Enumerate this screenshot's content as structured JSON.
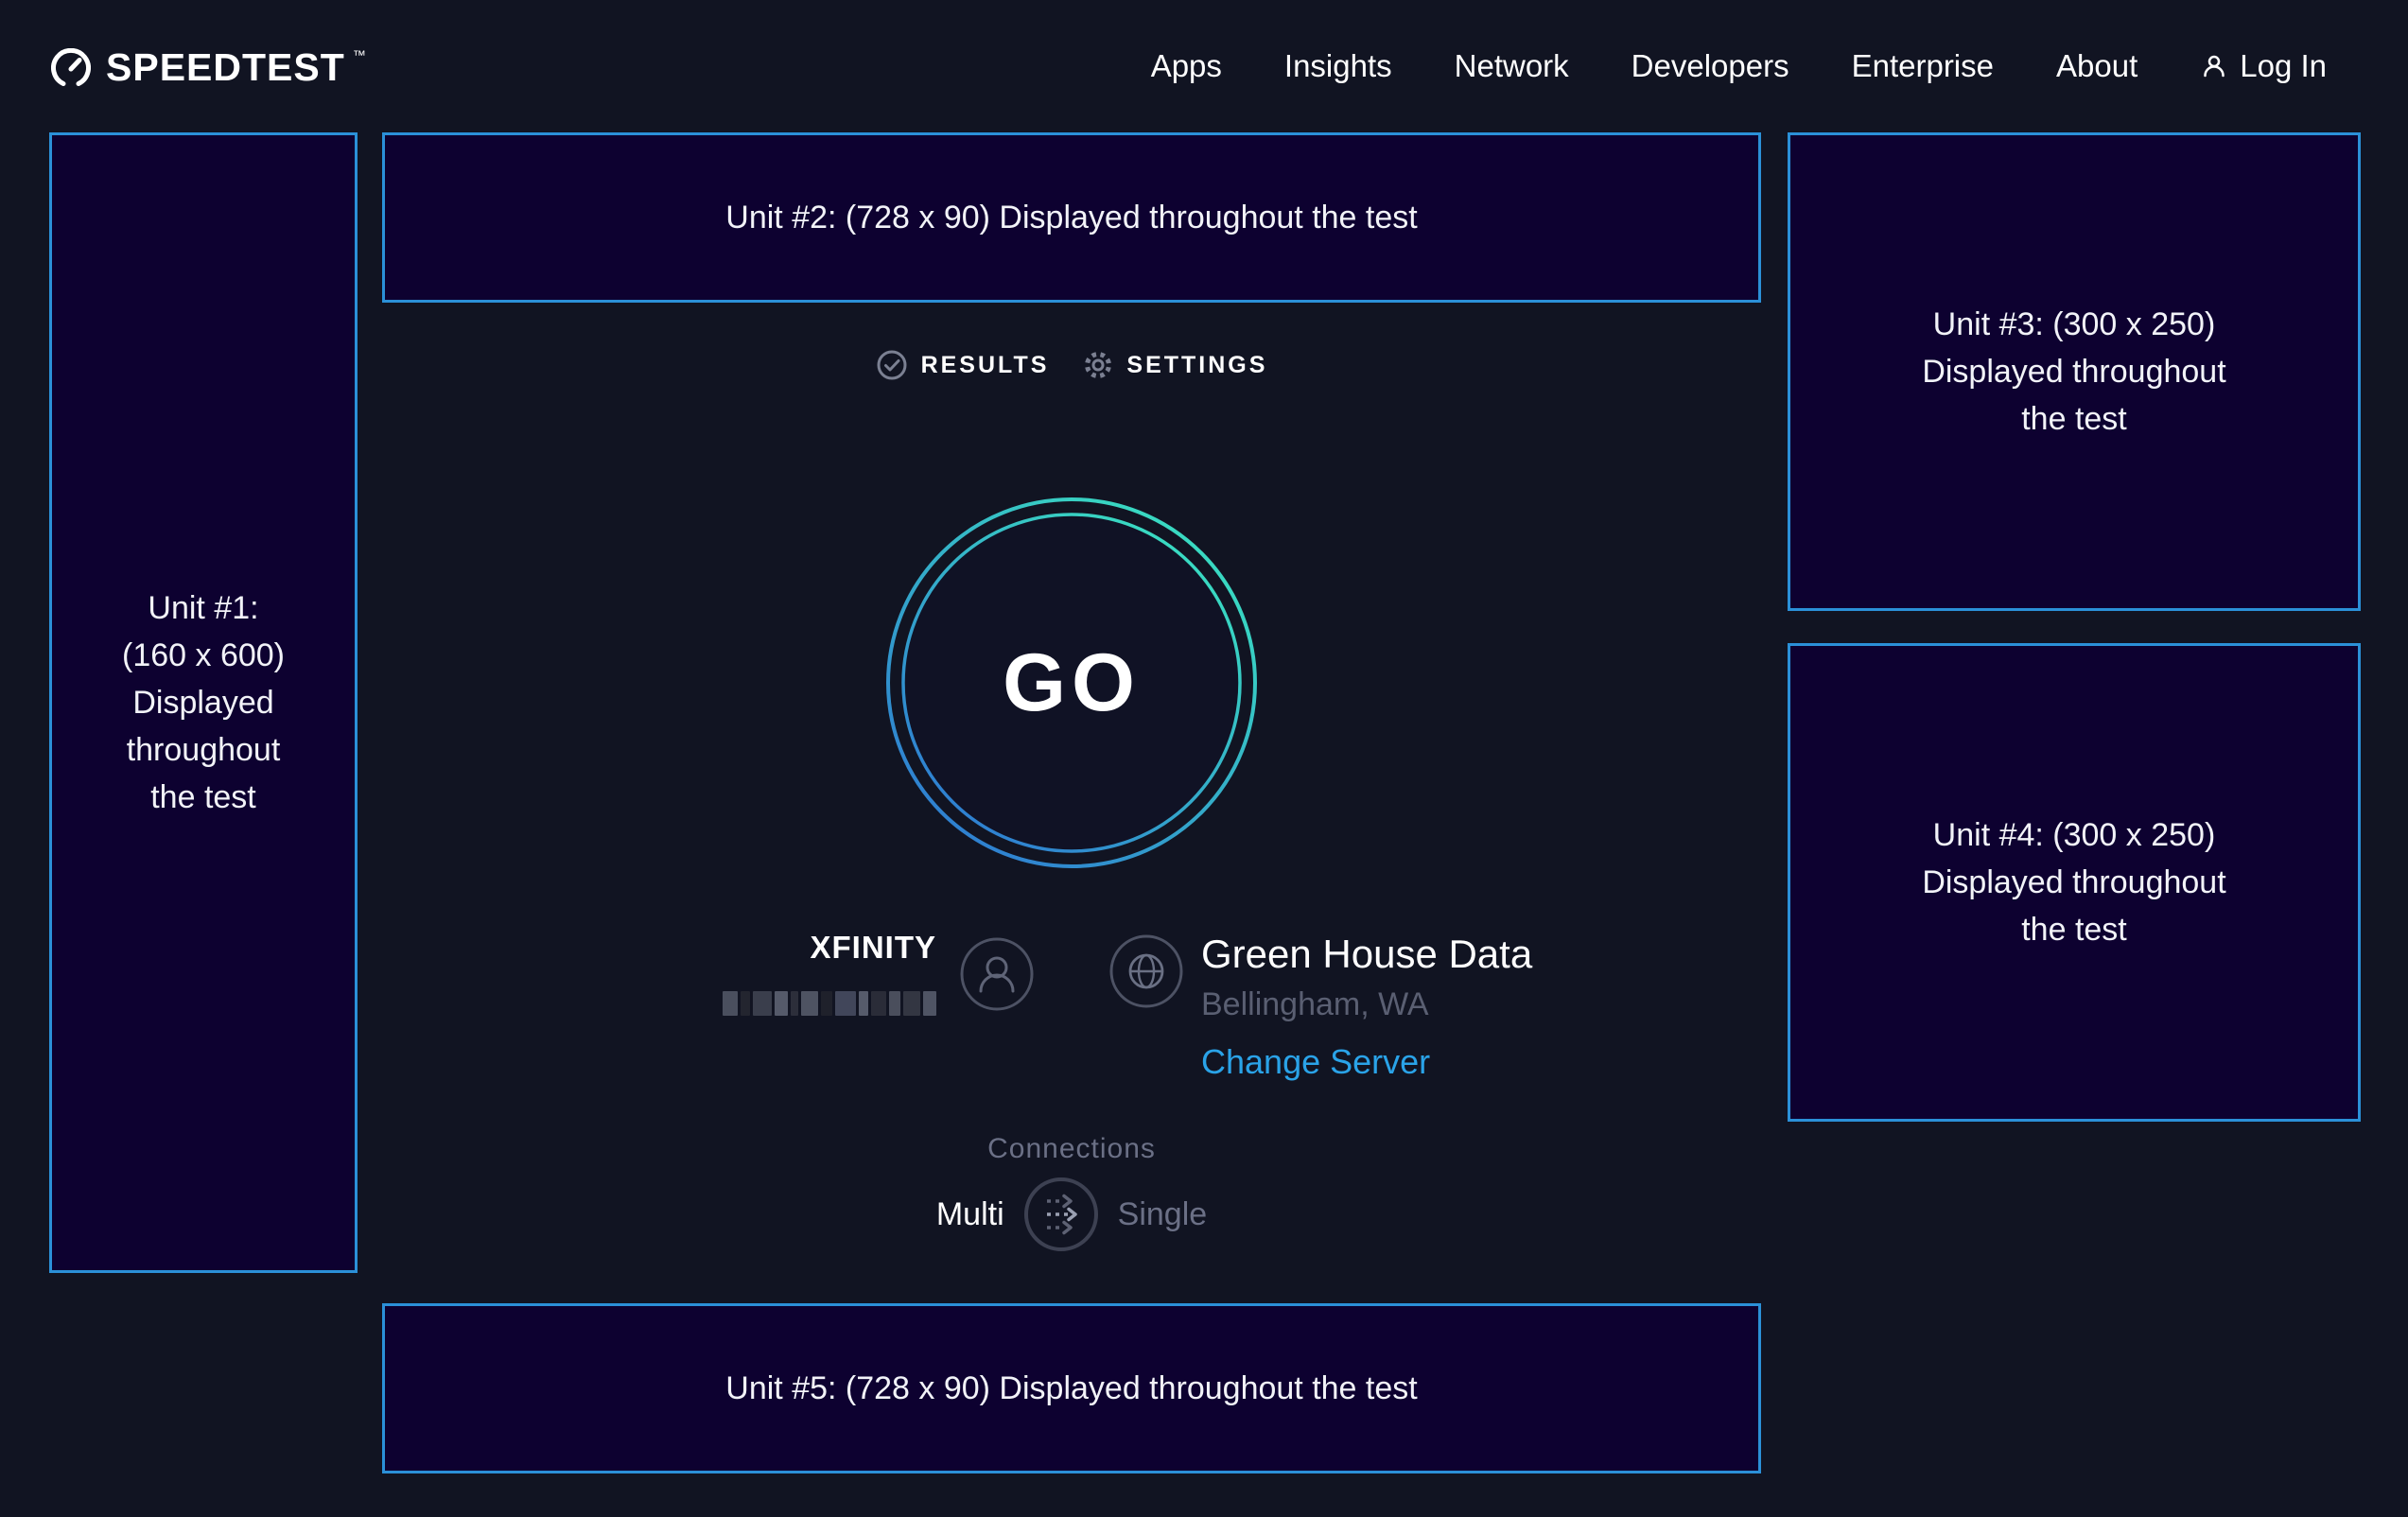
{
  "header": {
    "logo_text": "SPEEDTEST",
    "logo_mark": "™",
    "nav": [
      {
        "label": "Apps"
      },
      {
        "label": "Insights"
      },
      {
        "label": "Network"
      },
      {
        "label": "Developers"
      },
      {
        "label": "Enterprise"
      },
      {
        "label": "About"
      }
    ],
    "login_label": "Log In"
  },
  "ads": {
    "unit1": {
      "lines": [
        "Unit #1:",
        "(160 x 600)",
        "Displayed",
        "throughout",
        "the test"
      ]
    },
    "unit2": {
      "text": "Unit #2: (728 x 90) Displayed throughout the test"
    },
    "unit3": {
      "lines": [
        "Unit #3: (300 x 250)",
        "Displayed throughout",
        "the test"
      ]
    },
    "unit4": {
      "lines": [
        "Unit #4: (300 x 250)",
        "Displayed throughout",
        "the test"
      ]
    },
    "unit5": {
      "text": "Unit #5: (728 x 90) Displayed throughout the test"
    }
  },
  "tabs": {
    "results": "RESULTS",
    "settings": "SETTINGS"
  },
  "go_label": "GO",
  "provider": {
    "name": "XFINITY",
    "ip_redacted": true,
    "redacted_blocks": [
      {
        "w": 16,
        "c": "#4a4f5e"
      },
      {
        "w": 10,
        "c": "#23252f"
      },
      {
        "w": 20,
        "c": "#3a3e4c"
      },
      {
        "w": 14,
        "c": "#555a6a"
      },
      {
        "w": 8,
        "c": "#2c2e3a"
      },
      {
        "w": 18,
        "c": "#4e5362"
      },
      {
        "w": 12,
        "c": "#1f212b"
      },
      {
        "w": 22,
        "c": "#41465a"
      },
      {
        "w": 10,
        "c": "#565b6b"
      },
      {
        "w": 16,
        "c": "#2a2c38"
      },
      {
        "w": 12,
        "c": "#4a4e5c"
      },
      {
        "w": 18,
        "c": "#333642"
      },
      {
        "w": 14,
        "c": "#4f5464"
      }
    ]
  },
  "server": {
    "name": "Green House Data",
    "location": "Bellingham, WA",
    "change_server": "Change Server"
  },
  "connections": {
    "label": "Connections",
    "options": [
      "Multi",
      "Single"
    ],
    "selected": "Multi"
  },
  "colors": {
    "page_bg": "#111422",
    "ad_bg": "#0d0130",
    "ad_border": "#2b90d8",
    "link_blue": "#2aa3e8",
    "ring_teal": "#3ae2c0",
    "ring_blue": "#2e79d2"
  }
}
